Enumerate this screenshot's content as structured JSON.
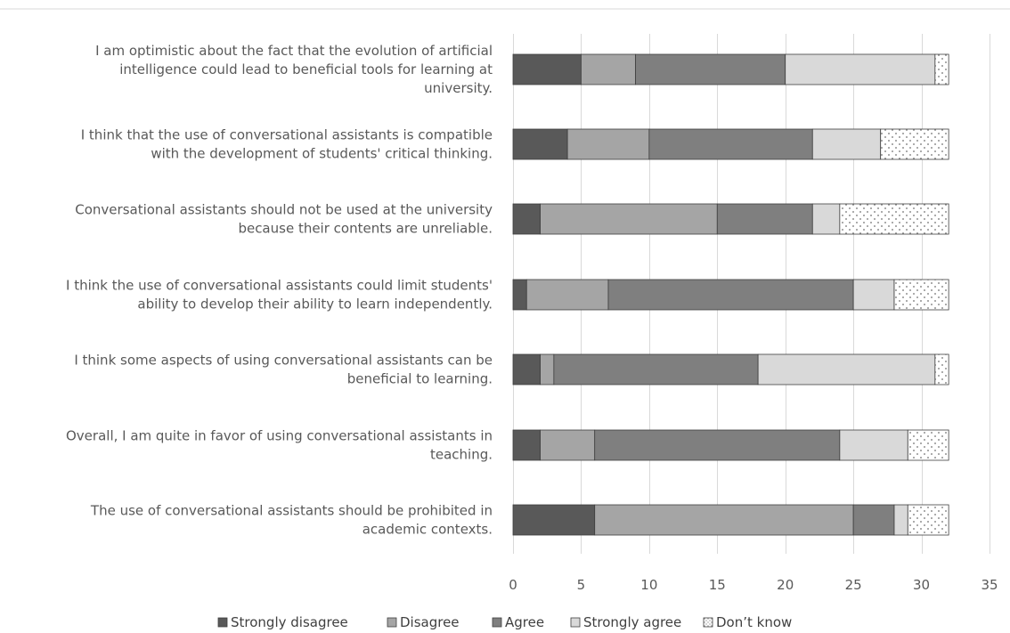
{
  "chart_data": {
    "type": "bar",
    "orientation": "horizontal",
    "stacked": true,
    "categories": [
      "I am optimistic about the fact that the evolution of artificial intelligence could lead to beneficial tools for learning at university.",
      "I think that the use of conversational assistants is compatible with the development of students' critical thinking.",
      "Conversational assistants should not be used at the university because their contents are unreliable.",
      "I think the use of conversational assistants could limit students' ability to develop their ability to learn independently.",
      "I think some aspects of using conversational assistants can be beneficial to learning.",
      "Overall, I am quite in favor of using conversational assistants in teaching.",
      "The use of conversational assistants should be prohibited in academic contexts."
    ],
    "category_lines": [
      [
        "I am optimistic about the fact that the evolution of artificial",
        "intelligence could lead to beneficial tools for learning at",
        "university."
      ],
      [
        "I think that the use of conversational assistants is compatible",
        "with the development of students' critical thinking."
      ],
      [
        "Conversational assistants should not be used at the university",
        "because their contents are unreliable."
      ],
      [
        "I think the use of conversational assistants could limit students'",
        "ability to develop their ability to learn independently."
      ],
      [
        "I think some aspects of using conversational assistants can be",
        "beneficial to learning."
      ],
      [
        "Overall, I am quite in favor of using conversational assistants in",
        "teaching."
      ],
      [
        "The use of conversational assistants should be prohibited in",
        "academic contexts."
      ]
    ],
    "series": [
      {
        "name": "Strongly disagree",
        "color": "#595959",
        "values": [
          5,
          4,
          2,
          1,
          2,
          2,
          6
        ]
      },
      {
        "name": "Disagree",
        "color": "#a5a5a5",
        "values": [
          4,
          6,
          13,
          6,
          1,
          4,
          19
        ]
      },
      {
        "name": "Agree",
        "color": "#7f7f7f",
        "values": [
          11,
          12,
          7,
          18,
          15,
          18,
          3
        ]
      },
      {
        "name": "Strongly agree",
        "color": "#d9d9d9",
        "values": [
          11,
          5,
          2,
          3,
          13,
          5,
          1
        ]
      },
      {
        "name": "Don’t know",
        "color": "#ffffff",
        "pattern": "dotted",
        "values": [
          1,
          5,
          8,
          4,
          1,
          3,
          3
        ]
      }
    ],
    "xlim": [
      0,
      35
    ],
    "xticks": [
      0,
      5,
      10,
      15,
      20,
      25,
      30,
      35
    ],
    "grid": true,
    "legend_position": "bottom"
  }
}
